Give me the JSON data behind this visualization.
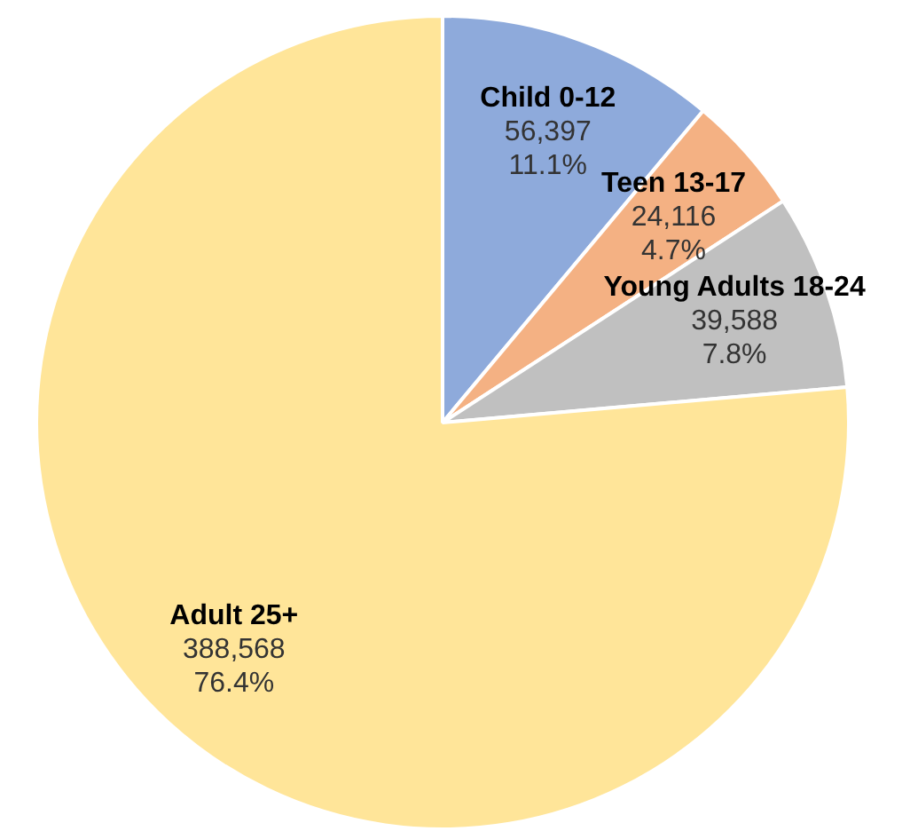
{
  "chart_data": {
    "type": "pie",
    "categories": [
      "Child 0-12",
      "Teen 13-17",
      "Young Adults 18-24",
      "Adult 25+"
    ],
    "values": [
      56397,
      24116,
      39588,
      388568
    ],
    "colors": [
      "#8eaadb",
      "#f4b183",
      "#c0c0c0",
      "#ffe599"
    ],
    "value_labels": [
      "56,397\n11.1%",
      "24,116\n4.7%",
      "39,588\n7.8%",
      "388,568\n76.4%"
    ],
    "legend": false
  }
}
